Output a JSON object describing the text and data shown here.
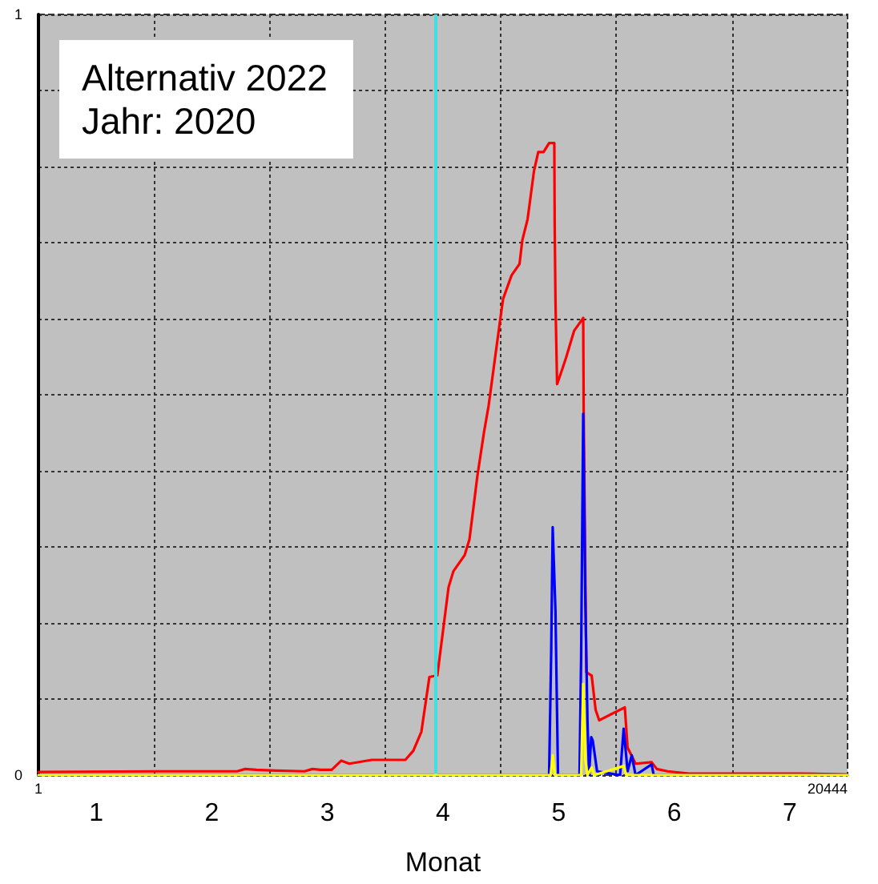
{
  "chart_data": {
    "type": "line",
    "title": "Alternativ 2022",
    "subtitle": "Jahr: 2020",
    "xlabel": "Monat",
    "annotations": [
      "1",
      "20444"
    ],
    "x": [
      0.5,
      1.553,
      2.219,
      2.288,
      2.385,
      2.551,
      2.801,
      2.87,
      2.939,
      3.037,
      3.12,
      3.189,
      3.383,
      3.674,
      3.743,
      3.813,
      3.882,
      3.951,
      4.048,
      4.09,
      4.187,
      4.229,
      4.298,
      4.354,
      4.395,
      4.488,
      4.52,
      4.593,
      4.662,
      4.686,
      4.732,
      4.787,
      4.824,
      4.87,
      4.918,
      4.963,
      4.966,
      4.973,
      4.987,
      5.019,
      5.065,
      5.134,
      5.213,
      5.217,
      5.24,
      5.286,
      5.32,
      5.351,
      5.48,
      5.573,
      5.597,
      5.666,
      5.805,
      5.85,
      5.943,
      6.128,
      7.098,
      7.486
    ],
    "series": [
      {
        "color": "#ff0000",
        "values": [
          0.004,
          0.005,
          0.005,
          0.008,
          0.007,
          0.006,
          0.005,
          0.008,
          0.007,
          0.007,
          0.019,
          0.015,
          0.02,
          0.02,
          0.032,
          0.057,
          0.129,
          0.131,
          0.247,
          0.268,
          0.289,
          0.31,
          0.394,
          0.45,
          0.486,
          0.591,
          0.626,
          0.657,
          0.672,
          0.703,
          0.731,
          0.794,
          0.819,
          0.819,
          0.831,
          0.831,
          0.728,
          0.623,
          0.514,
          0.528,
          0.549,
          0.584,
          0.601,
          0.479,
          0.135,
          0.131,
          0.086,
          0.072,
          0.082,
          0.089,
          0.036,
          0.015,
          0.017,
          0.008,
          0.005,
          0.002,
          0.002,
          0.001
        ]
      },
      {
        "color": "#0000ff",
        "x": [
          0.5,
          4.918,
          4.936,
          4.949,
          4.973,
          4.995,
          5.181,
          5.195,
          5.213,
          5.231,
          5.25,
          5.264,
          5.282,
          5.296,
          5.333,
          5.532,
          5.563,
          5.597,
          5.633,
          5.666,
          5.805,
          5.823,
          7.5
        ],
        "values": [
          0,
          0,
          0.163,
          0.326,
          0.215,
          0,
          0,
          0.156,
          0.475,
          0.233,
          0.07,
          0,
          0.05,
          0.045,
          0.005,
          0,
          0.061,
          0.005,
          0.026,
          0,
          0.014,
          0,
          0
        ]
      },
      {
        "color": "#ffff00",
        "x": [
          0.5,
          4.931,
          4.949,
          4.968,
          5.195,
          5.213,
          5.231,
          5.25,
          5.286,
          5.31,
          5.563,
          5.586,
          7.5
        ],
        "values": [
          0,
          0,
          0.026,
          0,
          0,
          0.12,
          0.02,
          0,
          0.01,
          0,
          0.012,
          0,
          0
        ]
      }
    ],
    "xlim": [
      0.5,
      7.5
    ],
    "xticks": [
      1,
      {
        "value": 1.5,
        "label": null
      },
      2,
      {
        "value": 2.5,
        "label": null
      },
      3,
      {
        "value": 3.5,
        "label": null
      },
      4,
      {
        "value": 4.5,
        "label": null
      },
      5,
      {
        "value": 5.5,
        "label": null
      },
      6,
      {
        "value": 6.5,
        "label": null
      },
      7
    ],
    "ylim": [
      0,
      1
    ],
    "yticks": [
      0,
      {
        "value": 0.1,
        "label": null
      },
      {
        "value": 0.2,
        "label": null
      },
      {
        "value": 0.3,
        "label": null
      },
      {
        "value": 0.4,
        "label": null
      },
      {
        "value": 0.5,
        "label": null
      },
      {
        "value": 0.6,
        "label": null
      },
      {
        "value": 0.7,
        "label": null
      },
      {
        "value": 0.8,
        "label": null
      },
      {
        "value": 0.9,
        "label": null
      },
      1
    ],
    "ref_lines": [
      {
        "axis": "x",
        "value": 3.938,
        "color": "#40e0e0"
      }
    ],
    "grid": true,
    "marker": "none",
    "line_style": "solid"
  }
}
